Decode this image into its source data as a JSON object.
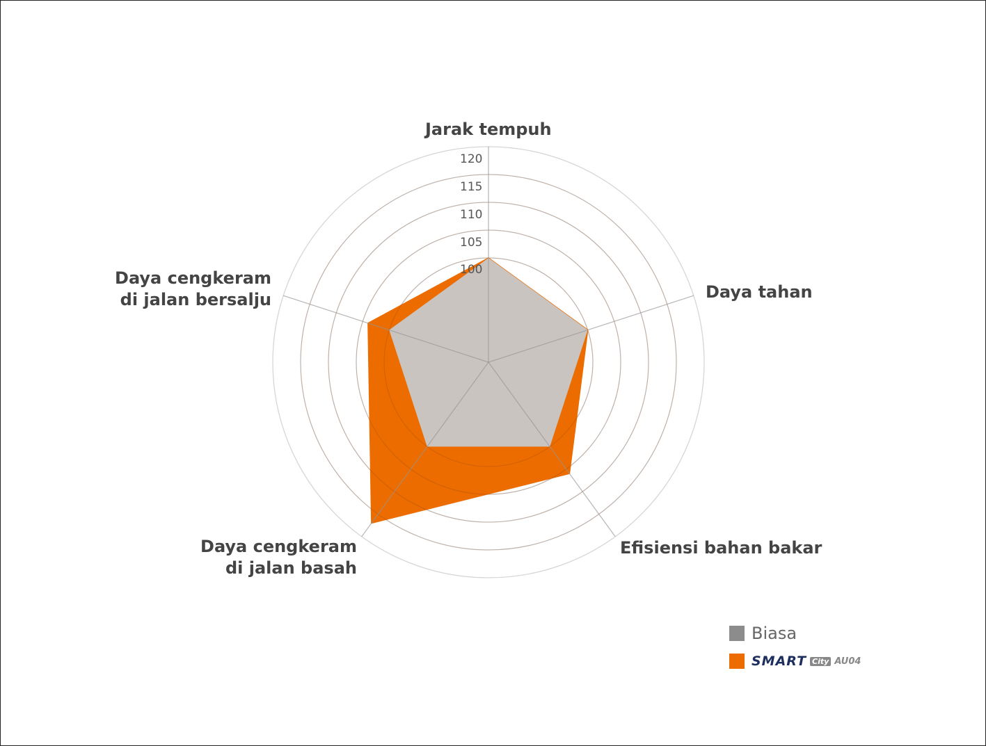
{
  "chart_data": {
    "type": "radar",
    "title": "",
    "categories": [
      "Jarak tempuh",
      "Daya tahan",
      "Efisiensi bahan bakar",
      "Daya cengkeram di jalan basah",
      "Daya cengkeram di jalan bersalju"
    ],
    "series": [
      {
        "name": "Biasa",
        "color": "#c8c9cb",
        "values": [
          100,
          100,
          100,
          100,
          100
        ]
      },
      {
        "name": "SMART City AU04",
        "color": "#ec6c00",
        "values": [
          100,
          100,
          106,
          117,
          104
        ]
      }
    ],
    "radial_ticks": [
      "100",
      "105",
      "110",
      "115",
      "120"
    ],
    "grid": true,
    "legend_position": "bottom-right"
  },
  "labels": {
    "top": "Jarak tempuh",
    "right": "Daya tahan",
    "bottom_right": "Efisiensi bahan bakar",
    "bottom_left": "Daya cengkeram\ndi jalan basah",
    "top_left": "Daya cengkeram\ndi jalan bersalju"
  },
  "legend": {
    "biasa": "Biasa",
    "brand_main": "SMART",
    "brand_city": "City",
    "brand_model": "AU04",
    "biasa_color": "#8c8c8c",
    "brand_color": "#ec6c00"
  }
}
